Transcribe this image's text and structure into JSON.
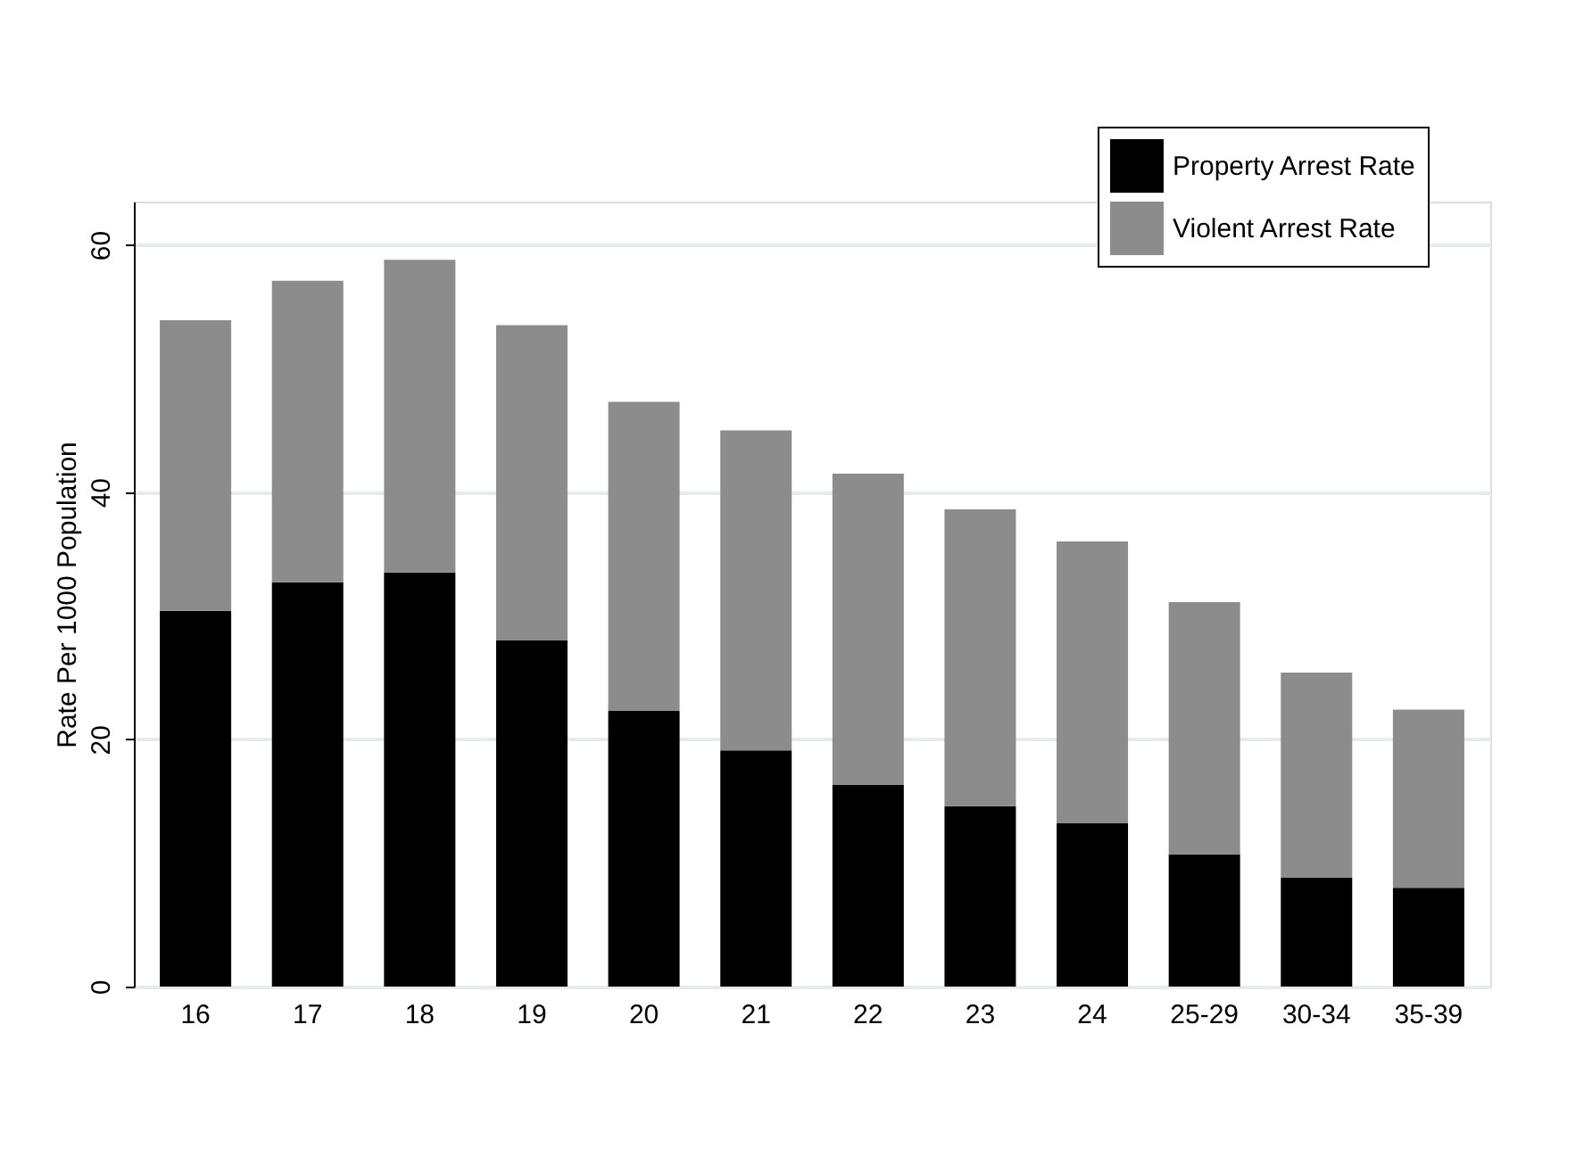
{
  "chart_data": {
    "type": "bar",
    "stacked": true,
    "ylabel": "Rate Per 1000 Population",
    "categories": [
      "16",
      "17",
      "18",
      "19",
      "20",
      "21",
      "22",
      "23",
      "24",
      "25-29",
      "30-34",
      "35-39"
    ],
    "series": [
      {
        "name": "Property Arrest Rate",
        "color": "#000000",
        "values": [
          30.4,
          32.7,
          33.5,
          28.0,
          22.3,
          19.1,
          16.3,
          14.6,
          13.2,
          10.7,
          8.8,
          8.0
        ]
      },
      {
        "name": "Violent Arrest Rate",
        "color": "#8c8c8c",
        "values": [
          23.5,
          24.4,
          25.3,
          25.5,
          25.0,
          25.9,
          25.2,
          24.0,
          22.8,
          20.4,
          16.6,
          14.4
        ]
      }
    ],
    "ylim": [
      0,
      63.5
    ],
    "yticks": [
      0,
      20,
      40,
      60
    ],
    "grid": "y",
    "legend": "top right"
  }
}
